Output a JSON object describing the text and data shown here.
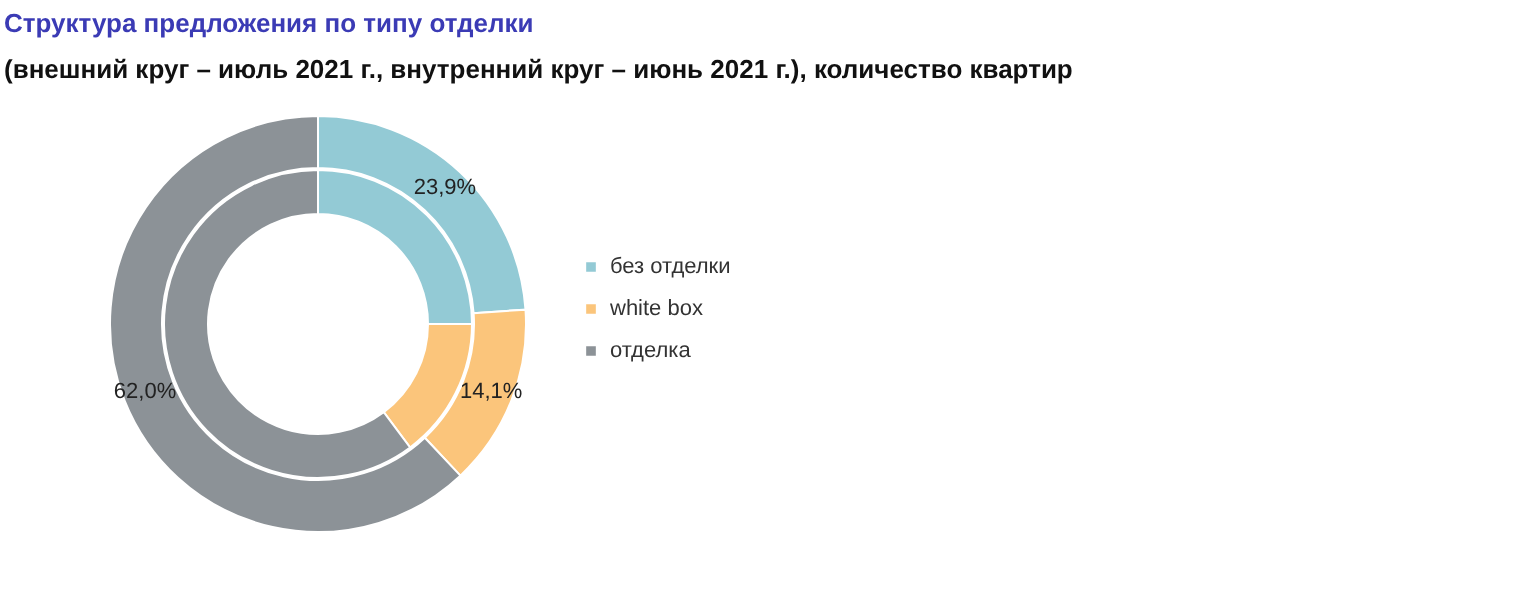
{
  "chart_data": {
    "type": "donut",
    "title": "Структура предложения по типу отделки",
    "subtitle": "(внешний круг – июль 2021 г., внутренний круг – июнь 2021 г.), количество квартир",
    "categories": [
      "без отделки",
      "white box",
      "отделка"
    ],
    "colors": [
      "#93cad5",
      "#fbc57b",
      "#8c9297"
    ],
    "series": [
      {
        "values": [
          23.9,
          14.1,
          62.0
        ],
        "value_labels": [
          "23,9%",
          "14,1%",
          "62,0%"
        ]
      },
      {
        "values": [
          25.0,
          14.8,
          60.2
        ]
      }
    ],
    "legend": "right"
  }
}
